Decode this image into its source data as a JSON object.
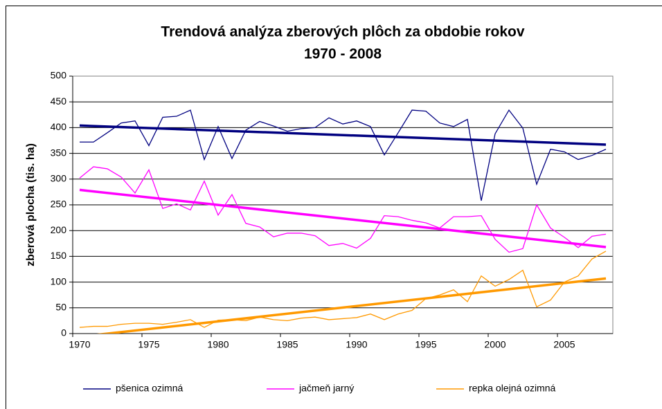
{
  "chart_data": {
    "type": "line",
    "title": [
      "Trendová analýza zberových plôch za obdobie rokov",
      "1970 - 2008"
    ],
    "y_label": "zberová plocha (tis. ha)",
    "categories": [
      "1970",
      null,
      null,
      null,
      null,
      "1975",
      null,
      null,
      null,
      null,
      "1980",
      null,
      null,
      null,
      null,
      "1985",
      null,
      null,
      null,
      null,
      "1990",
      null,
      null,
      null,
      null,
      "1995",
      null,
      null,
      null,
      null,
      "2000",
      null,
      null,
      null,
      null,
      "2005",
      null,
      null,
      null
    ],
    "series": [
      {
        "name": "pšenica ozimná",
        "color": "#000080",
        "values": [
          372,
          372,
          390,
          409,
          413,
          365,
          420,
          422,
          434,
          338,
          402,
          340,
          395,
          412,
          403,
          393,
          398,
          400,
          419,
          407,
          413,
          402,
          347,
          390,
          434,
          432,
          409,
          402,
          416,
          258,
          388,
          434,
          399,
          290,
          358,
          353,
          338,
          346,
          358
        ],
        "trend": [
          404,
          367
        ]
      },
      {
        "name": "jačmeň jarný",
        "color": "#ff00ff",
        "values": [
          302,
          324,
          320,
          304,
          273,
          318,
          243,
          252,
          240,
          296,
          230,
          270,
          214,
          207,
          188,
          195,
          195,
          190,
          171,
          175,
          166,
          185,
          229,
          227,
          220,
          215,
          205,
          227,
          227,
          229,
          183,
          158,
          165,
          250,
          205,
          187,
          167,
          189,
          193
        ],
        "trend": [
          279,
          168
        ]
      },
      {
        "name": "repka olejná ozimná",
        "color": "#ff9900",
        "values": [
          12,
          14,
          14,
          18,
          20,
          20,
          18,
          22,
          27,
          12,
          26,
          27,
          25,
          32,
          27,
          25,
          30,
          32,
          27,
          29,
          31,
          38,
          27,
          38,
          45,
          68,
          75,
          85,
          62,
          112,
          92,
          105,
          123,
          52,
          65,
          100,
          112,
          145,
          160
        ],
        "trend": [
          -6,
          107
        ]
      }
    ],
    "ylim": [
      0,
      500
    ],
    "yticks": [
      0,
      50,
      100,
      150,
      200,
      250,
      300,
      350,
      400,
      450,
      500
    ],
    "grid": true,
    "legend": "bottom"
  }
}
